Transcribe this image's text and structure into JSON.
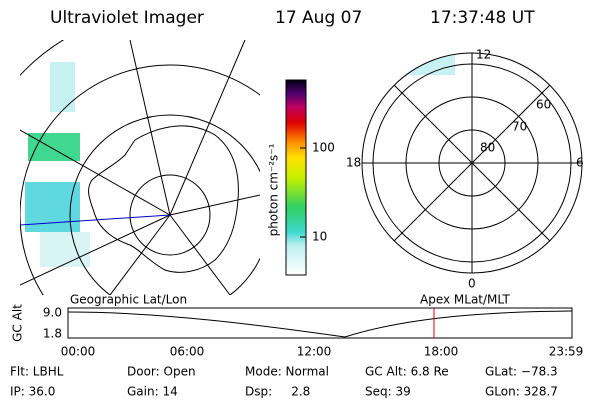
{
  "header": {
    "instrument": "Ultraviolet Imager",
    "date": "17 Aug 07",
    "time": "17:37:48 UT"
  },
  "colorbar": {
    "label": "photon cm⁻²s⁻¹",
    "ticks": [
      "100",
      "10"
    ]
  },
  "polar_plot": {
    "mlt_labels": [
      "12",
      "18",
      "6",
      "0"
    ],
    "lat_labels": [
      "80",
      "70",
      "60"
    ]
  },
  "altitude_plot": {
    "axis_label": "GC Alt",
    "y_labels": [
      "9.0",
      "1.8"
    ],
    "left_title": "Geographic Lat/Lon",
    "right_title": "Apex MLat/MLT",
    "time_labels": [
      "00:00",
      "06:00",
      "12:00",
      "18:00",
      "23:59"
    ]
  },
  "status": [
    [
      "Flt: LBHL",
      "Door: Open",
      "Mode: Normal",
      "GC Alt: 6.8 Re",
      "GLat: −78.3"
    ],
    [
      "IP: 36.0",
      "Gain: 14",
      "Dsp:     2.8",
      "Seq: 39",
      "GLon: 328.7"
    ]
  ]
}
